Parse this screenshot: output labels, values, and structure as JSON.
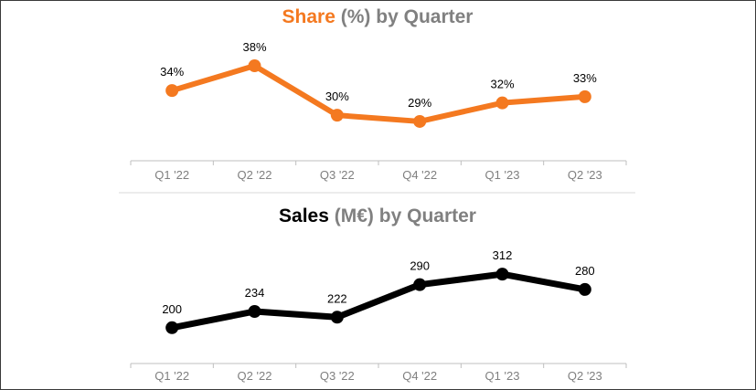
{
  "chart_data": [
    {
      "type": "line",
      "title": "Share (%) by Quarter",
      "title_parts": {
        "main": "Share",
        "unit": "(%)",
        "rest": "by Quarter"
      },
      "categories": [
        "Q1 '22",
        "Q2 '22",
        "Q3 '22",
        "Q4 '22",
        "Q1 '23",
        "Q2 '23"
      ],
      "series": [
        {
          "name": "Share",
          "values": [
            34,
            38,
            30,
            29,
            32,
            33
          ],
          "labels": [
            "34%",
            "38%",
            "30%",
            "29%",
            "32%",
            "33%"
          ]
        }
      ],
      "ylim": [
        25,
        42
      ],
      "xlabel": "",
      "ylabel": "",
      "color": "#f47920",
      "grid": false
    },
    {
      "type": "line",
      "title": "Sales (M€) by Quarter",
      "title_parts": {
        "main": "Sales",
        "unit": "(M€)",
        "rest": "by Quarter"
      },
      "categories": [
        "Q1 '22",
        "Q2 '22",
        "Q3 '22",
        "Q4 '22",
        "Q1 '23",
        "Q2 '23"
      ],
      "series": [
        {
          "name": "Sales",
          "values": [
            200,
            234,
            222,
            290,
            312,
            280
          ],
          "labels": [
            "200",
            "234",
            "222",
            "290",
            "312",
            "280"
          ]
        }
      ],
      "ylim": [
        150,
        360
      ],
      "xlabel": "",
      "ylabel": "",
      "color": "#000000",
      "grid": false
    }
  ]
}
